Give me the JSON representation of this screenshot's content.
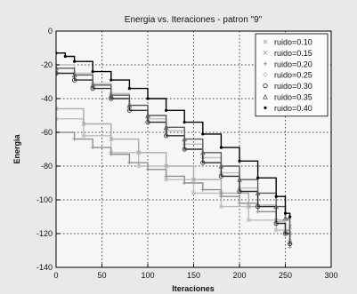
{
  "chart_data": {
    "type": "line",
    "title": "Energia vs. Iteraciones - patron \"9\"",
    "xlabel": "Iteraciones",
    "ylabel": "Energia",
    "xlim": [
      0,
      300
    ],
    "ylim": [
      -140,
      0
    ],
    "xticks": [
      0,
      50,
      100,
      150,
      200,
      250,
      300
    ],
    "yticks": [
      0,
      -20,
      -40,
      -60,
      -80,
      -100,
      -120,
      -140
    ],
    "grid": true,
    "legend_position": "top-right",
    "series": [
      {
        "name": "ruido=0.10",
        "color": "#bdbdbd",
        "marker": "star",
        "x": [
          0,
          30,
          60,
          90,
          120,
          150,
          180,
          210,
          240,
          255
        ],
        "y": [
          -52,
          -62,
          -72,
          -80,
          -88,
          -96,
          -104,
          -112,
          -118,
          -120
        ]
      },
      {
        "name": "ruido=0.15",
        "color": "#aaaaaa",
        "marker": "x",
        "x": [
          0,
          30,
          60,
          90,
          120,
          150,
          180,
          210,
          240,
          255
        ],
        "y": [
          -46,
          -55,
          -64,
          -72,
          -80,
          -88,
          -96,
          -104,
          -112,
          -116
        ]
      },
      {
        "name": "ruido=0.20",
        "color": "#8e8e8e",
        "marker": "plus",
        "x": [
          0,
          20,
          40,
          60,
          80,
          100,
          120,
          140,
          160,
          180,
          200,
          220,
          240,
          250,
          255
        ],
        "y": [
          -60,
          -64,
          -69,
          -73,
          -78,
          -82,
          -86,
          -90,
          -94,
          -98,
          -102,
          -107,
          -113,
          -118,
          -128
        ]
      },
      {
        "name": "ruido=0.25",
        "color": "#bfbfbf",
        "marker": "diamond",
        "x": [
          0,
          20,
          40,
          60,
          80,
          100,
          120,
          140,
          160,
          180,
          200,
          220,
          240,
          250,
          255
        ],
        "y": [
          -20,
          -25,
          -31,
          -37,
          -44,
          -52,
          -59,
          -67,
          -75,
          -84,
          -93,
          -103,
          -113,
          -119,
          -124
        ]
      },
      {
        "name": "ruido=0.30",
        "color": "#2b2b2b",
        "marker": "circle",
        "x": [
          0,
          20,
          40,
          60,
          80,
          100,
          120,
          140,
          160,
          180,
          200,
          220,
          240,
          250,
          255
        ],
        "y": [
          -25,
          -29,
          -34,
          -40,
          -47,
          -54,
          -62,
          -70,
          -78,
          -86,
          -95,
          -104,
          -114,
          -120,
          -126
        ]
      },
      {
        "name": "ruido=0.35",
        "color": "#5a5a5a",
        "marker": "triangle",
        "x": [
          0,
          20,
          40,
          60,
          80,
          100,
          120,
          140,
          160,
          180,
          200,
          220,
          240,
          250,
          255
        ],
        "y": [
          -22,
          -26,
          -32,
          -38,
          -44,
          -50,
          -57,
          -64,
          -72,
          -80,
          -88,
          -96,
          -104,
          -111,
          -125
        ]
      },
      {
        "name": "ruido=0.40",
        "color": "#000000",
        "marker": "dot",
        "x": [
          0,
          10,
          20,
          40,
          60,
          80,
          100,
          120,
          140,
          160,
          180,
          200,
          220,
          240,
          250,
          255
        ],
        "y": [
          -13,
          -15,
          -18,
          -24,
          -29,
          -34,
          -40,
          -47,
          -54,
          -61,
          -69,
          -77,
          -87,
          -98,
          -108,
          -110
        ]
      }
    ]
  }
}
